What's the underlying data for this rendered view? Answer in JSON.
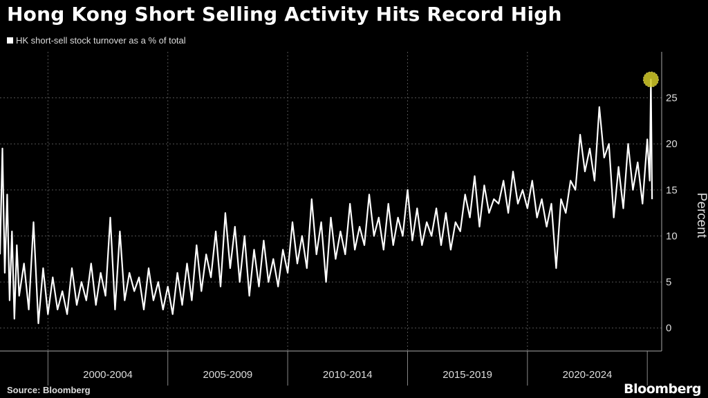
{
  "chart_data": {
    "type": "line",
    "title": "Hong Kong Short Selling Activity Hits Record High",
    "legend": [
      "HK short-sell stock turnover as a % of total"
    ],
    "ylabel": "Percent",
    "ylim": [
      -2.5,
      30
    ],
    "yticks": [
      0,
      5,
      10,
      15,
      20,
      25
    ],
    "xlim": [
      1998.0,
      2025.6
    ],
    "x_periods": [
      {
        "label": "2000-2004",
        "start": 2000,
        "end": 2005
      },
      {
        "label": "2005-2009",
        "start": 2005,
        "end": 2010
      },
      {
        "label": "2010-2014",
        "start": 2010,
        "end": 2015
      },
      {
        "label": "2015-2019",
        "start": 2015,
        "end": 2020
      },
      {
        "label": "2020-2024",
        "start": 2020,
        "end": 2025
      }
    ],
    "grid": true,
    "legend_position": "top-left",
    "highlight": {
      "x": 2025.15,
      "y": 27.0,
      "color": "#d4cc2a"
    },
    "series": [
      {
        "name": "HK short-sell stock turnover as a % of total",
        "color": "#ffffff",
        "x": [
          1998.0,
          1998.1,
          1998.2,
          1998.3,
          1998.4,
          1998.5,
          1998.6,
          1998.7,
          1998.8,
          1999.0,
          1999.2,
          1999.4,
          1999.6,
          1999.8,
          2000.0,
          2000.2,
          2000.4,
          2000.6,
          2000.8,
          2001.0,
          2001.2,
          2001.4,
          2001.6,
          2001.8,
          2002.0,
          2002.2,
          2002.4,
          2002.6,
          2002.8,
          2003.0,
          2003.2,
          2003.4,
          2003.6,
          2003.8,
          2004.0,
          2004.2,
          2004.4,
          2004.6,
          2004.8,
          2005.0,
          2005.2,
          2005.4,
          2005.6,
          2005.8,
          2006.0,
          2006.2,
          2006.4,
          2006.6,
          2006.8,
          2007.0,
          2007.2,
          2007.4,
          2007.6,
          2007.8,
          2008.0,
          2008.2,
          2008.4,
          2008.6,
          2008.8,
          2009.0,
          2009.2,
          2009.4,
          2009.6,
          2009.8,
          2010.0,
          2010.2,
          2010.4,
          2010.6,
          2010.8,
          2011.0,
          2011.2,
          2011.4,
          2011.6,
          2011.8,
          2012.0,
          2012.2,
          2012.4,
          2012.6,
          2012.8,
          2013.0,
          2013.2,
          2013.4,
          2013.6,
          2013.8,
          2014.0,
          2014.2,
          2014.4,
          2014.6,
          2014.8,
          2015.0,
          2015.2,
          2015.4,
          2015.6,
          2015.8,
          2016.0,
          2016.2,
          2016.4,
          2016.6,
          2016.8,
          2017.0,
          2017.2,
          2017.4,
          2017.6,
          2017.8,
          2018.0,
          2018.2,
          2018.4,
          2018.6,
          2018.8,
          2019.0,
          2019.2,
          2019.4,
          2019.6,
          2019.8,
          2020.0,
          2020.2,
          2020.4,
          2020.6,
          2020.8,
          2021.0,
          2021.2,
          2021.4,
          2021.6,
          2021.8,
          2022.0,
          2022.2,
          2022.4,
          2022.6,
          2022.8,
          2023.0,
          2023.2,
          2023.4,
          2023.6,
          2023.8,
          2024.0,
          2024.2,
          2024.4,
          2024.6,
          2024.8,
          2025.0,
          2025.1,
          2025.15,
          2025.2
        ],
        "values": [
          8.0,
          19.5,
          6.0,
          14.5,
          3.0,
          10.5,
          1.0,
          9.0,
          3.5,
          7.0,
          2.0,
          11.5,
          0.5,
          6.5,
          1.5,
          5.5,
          2.0,
          4.0,
          1.5,
          6.5,
          2.5,
          5.0,
          3.0,
          7.0,
          2.5,
          6.0,
          3.5,
          12.0,
          2.0,
          10.5,
          3.0,
          6.0,
          4.0,
          5.5,
          2.0,
          6.5,
          3.0,
          5.0,
          2.0,
          4.5,
          1.5,
          6.0,
          2.5,
          7.0,
          3.0,
          9.0,
          4.0,
          8.0,
          5.5,
          10.5,
          4.5,
          12.5,
          6.5,
          11.0,
          5.0,
          10.0,
          3.5,
          8.5,
          4.5,
          9.5,
          5.0,
          7.5,
          4.5,
          8.5,
          6.0,
          11.5,
          7.0,
          10.0,
          6.5,
          14.0,
          8.0,
          11.5,
          5.0,
          12.0,
          7.5,
          10.5,
          8.0,
          13.5,
          8.5,
          11.0,
          9.0,
          14.5,
          10.0,
          12.0,
          8.5,
          13.5,
          9.0,
          12.0,
          10.0,
          15.0,
          9.5,
          13.0,
          9.0,
          11.5,
          10.0,
          13.0,
          9.0,
          12.5,
          8.5,
          11.5,
          10.5,
          14.5,
          12.0,
          16.5,
          11.0,
          15.5,
          12.5,
          14.0,
          13.5,
          16.0,
          12.5,
          17.0,
          13.5,
          15.0,
          13.0,
          16.0,
          12.0,
          14.0,
          11.0,
          13.5,
          6.5,
          14.0,
          12.5,
          16.0,
          15.0,
          21.0,
          17.0,
          19.5,
          16.0,
          24.0,
          18.5,
          20.0,
          12.0,
          17.5,
          13.0,
          20.0,
          15.0,
          18.0,
          13.5,
          20.5,
          16.0,
          27.0,
          14.0
        ]
      }
    ]
  },
  "footer": {
    "source": "Source: Bloomberg",
    "brand": "Bloomberg"
  }
}
